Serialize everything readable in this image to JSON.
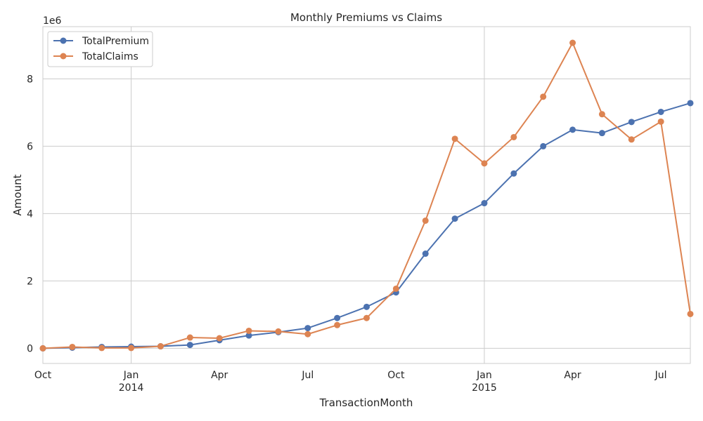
{
  "chart_data": {
    "type": "line",
    "title": "Monthly Premiums vs Claims",
    "xlabel": "TransactionMonth",
    "ylabel": "Amount",
    "y_offset_text": "1e6",
    "y_multiplier": 1000000,
    "ylim": [
      -0.45,
      9.55
    ],
    "grid": true,
    "legend_position": "top-left",
    "x": [
      "2013-10",
      "2013-11",
      "2013-12",
      "2014-01",
      "2014-02",
      "2014-03",
      "2014-04",
      "2014-05",
      "2014-06",
      "2014-07",
      "2014-08",
      "2014-09",
      "2014-10",
      "2014-11",
      "2014-12",
      "2015-01",
      "2015-02",
      "2015-03",
      "2015-04",
      "2015-05",
      "2015-06",
      "2015-07",
      "2015-08"
    ],
    "x_ticks": [
      {
        "month": "2013-10",
        "label": "Oct",
        "sub": ""
      },
      {
        "month": "2014-01",
        "label": "Jan",
        "sub": "2014",
        "major": true
      },
      {
        "month": "2014-04",
        "label": "Apr",
        "sub": ""
      },
      {
        "month": "2014-07",
        "label": "Jul",
        "sub": ""
      },
      {
        "month": "2014-10",
        "label": "Oct",
        "sub": ""
      },
      {
        "month": "2015-01",
        "label": "Jan",
        "sub": "2015",
        "major": true
      },
      {
        "month": "2015-04",
        "label": "Apr",
        "sub": ""
      },
      {
        "month": "2015-07",
        "label": "Jul",
        "sub": ""
      }
    ],
    "y_ticks": [
      0,
      2,
      4,
      6,
      8
    ],
    "series": [
      {
        "name": "TotalPremium",
        "color": "#4c72b0",
        "values": [
          0.0,
          0.02,
          0.04,
          0.05,
          0.06,
          0.1,
          0.24,
          0.38,
          0.48,
          0.6,
          0.9,
          1.23,
          1.66,
          2.81,
          3.85,
          4.31,
          5.19,
          6.0,
          6.49,
          6.39,
          6.72,
          7.02,
          7.28
        ]
      },
      {
        "name": "TotalClaims",
        "color": "#dd8452",
        "values": [
          0.0,
          0.04,
          0.01,
          0.01,
          0.06,
          0.32,
          0.3,
          0.52,
          0.5,
          0.42,
          0.69,
          0.9,
          1.77,
          3.79,
          6.22,
          5.49,
          6.27,
          7.47,
          9.07,
          6.95,
          6.2,
          6.73,
          1.02
        ]
      }
    ]
  }
}
